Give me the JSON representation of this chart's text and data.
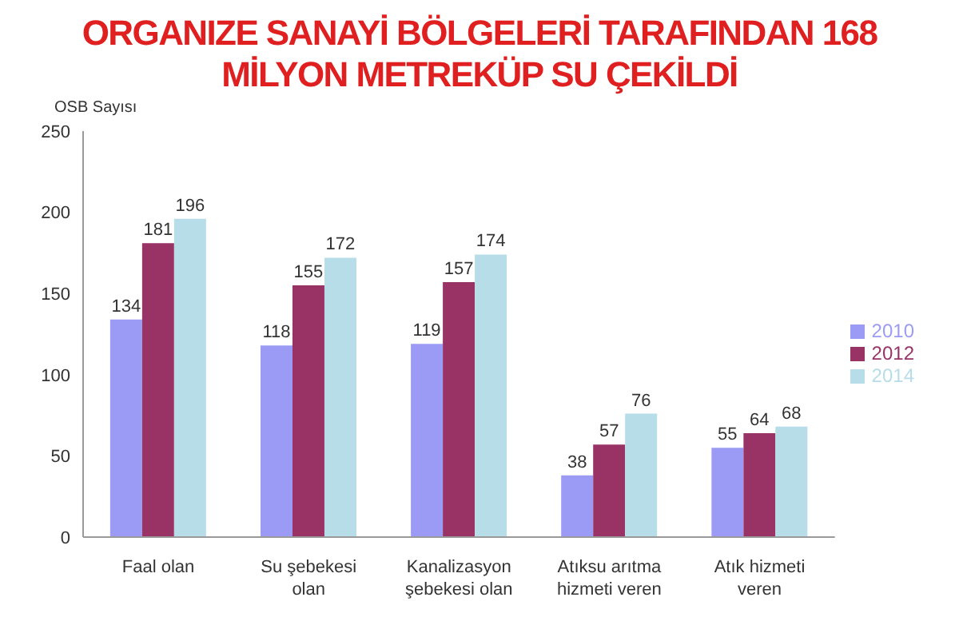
{
  "chart_data": {
    "type": "bar",
    "title": "ORGANIZE SANAYİ BÖLGELERİ TARAFINDAN 168 MİLYON METREKÜP SU ÇEKİLDİ",
    "ylabel": "OSB Sayısı",
    "categories": [
      "Faal olan",
      "Su şebekesi olan",
      "Kanalizasyon şebekesi olan",
      "Atıksu arıtma hizmeti veren",
      "Atık hizmeti veren"
    ],
    "series": [
      {
        "name": "2010",
        "color": "#9b9bf5",
        "values": [
          134,
          118,
          119,
          38,
          55
        ]
      },
      {
        "name": "2012",
        "color": "#993366",
        "values": [
          181,
          155,
          157,
          57,
          64
        ]
      },
      {
        "name": "2014",
        "color": "#b7dde8",
        "values": [
          196,
          172,
          174,
          76,
          68
        ]
      }
    ],
    "ylim": [
      0,
      250
    ],
    "yticks": [
      0,
      50,
      100,
      150,
      200,
      250
    ],
    "grid": false,
    "legend": "right",
    "data_labels": true
  }
}
